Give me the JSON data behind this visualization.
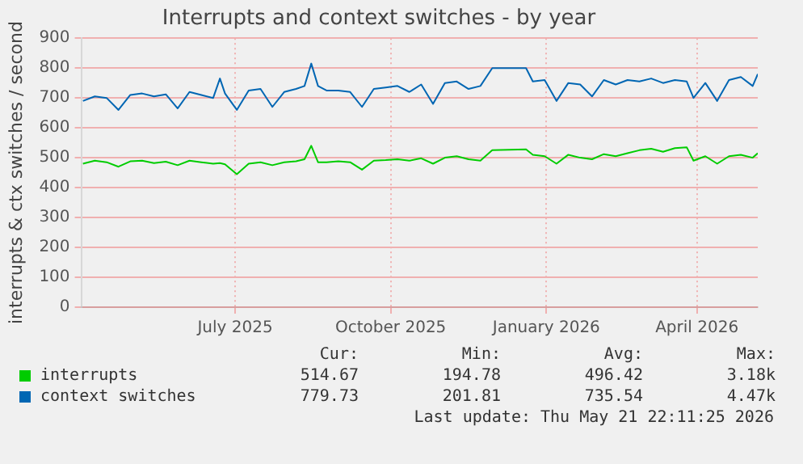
{
  "chart_data": {
    "type": "line",
    "title": "Interrupts and context switches - by year",
    "ylabel": "interrupts & ctx switches / second",
    "x": [
      "2025-04-17",
      "2025-04-24",
      "2025-05-01",
      "2025-05-08",
      "2025-05-15",
      "2025-05-22",
      "2025-05-29",
      "2025-06-05",
      "2025-06-12",
      "2025-06-19",
      "2025-06-26",
      "2025-07-03",
      "2025-07-07",
      "2025-07-10",
      "2025-07-17",
      "2025-07-24",
      "2025-07-31",
      "2025-08-07",
      "2025-08-14",
      "2025-08-21",
      "2025-08-26",
      "2025-08-30",
      "2025-09-03",
      "2025-09-08",
      "2025-09-15",
      "2025-09-22",
      "2025-09-29",
      "2025-10-06",
      "2025-10-13",
      "2025-10-20",
      "2025-10-27",
      "2025-11-03",
      "2025-11-10",
      "2025-11-17",
      "2025-11-24",
      "2025-12-01",
      "2025-12-08",
      "2025-12-15",
      "2026-01-04",
      "2026-01-08",
      "2026-01-15",
      "2026-01-22",
      "2026-01-29",
      "2026-02-05",
      "2026-02-12",
      "2026-02-19",
      "2026-02-26",
      "2026-03-05",
      "2026-03-12",
      "2026-03-19",
      "2026-03-26",
      "2026-04-02",
      "2026-04-09",
      "2026-04-13",
      "2026-04-20",
      "2026-04-27",
      "2026-05-04",
      "2026-05-11",
      "2026-05-18",
      "2026-05-21"
    ],
    "series": [
      {
        "name": "interrupts",
        "color": "#00cc00",
        "values": [
          480,
          490,
          485,
          470,
          488,
          490,
          482,
          487,
          475,
          490,
          485,
          480,
          482,
          478,
          445,
          480,
          485,
          475,
          485,
          488,
          495,
          540,
          485,
          485,
          488,
          485,
          460,
          490,
          492,
          495,
          490,
          498,
          480,
          500,
          505,
          495,
          490,
          525,
          528,
          510,
          505,
          480,
          510,
          500,
          495,
          512,
          505,
          515,
          525,
          530,
          520,
          532,
          535,
          490,
          505,
          480,
          505,
          510,
          500,
          515
        ]
      },
      {
        "name": "context switches",
        "color": "#0066b3",
        "values": [
          690,
          705,
          700,
          660,
          710,
          715,
          705,
          712,
          665,
          720,
          710,
          700,
          765,
          715,
          660,
          725,
          730,
          670,
          720,
          730,
          740,
          815,
          740,
          725,
          725,
          720,
          670,
          730,
          735,
          740,
          720,
          745,
          680,
          750,
          755,
          730,
          740,
          800,
          800,
          755,
          760,
          690,
          750,
          745,
          705,
          760,
          745,
          760,
          755,
          765,
          750,
          760,
          755,
          700,
          750,
          690,
          760,
          770,
          740,
          780
        ]
      }
    ],
    "xlim": [
      "2025-04-16",
      "2026-05-21"
    ],
    "xticks": [
      {
        "value": "2025-07-16",
        "label": "July 2025"
      },
      {
        "value": "2025-10-16",
        "label": "October 2025"
      },
      {
        "value": "2026-01-16",
        "label": "January 2026"
      },
      {
        "value": "2026-04-15",
        "label": "April 2026"
      }
    ],
    "ylim": [
      0,
      900
    ],
    "yticks": [
      0,
      100,
      200,
      300,
      400,
      500,
      600,
      700,
      800,
      900
    ],
    "grid": true,
    "legend": "bottom",
    "marker": "none",
    "line_style": "solid",
    "annotations": [
      "Cur:",
      "Min:",
      "Avg:",
      "Max:",
      "514.67",
      "194.78",
      "496.42",
      "3.18k",
      "779.73",
      "201.81",
      "735.54",
      "4.47k",
      "Last update: Thu May 21 22:11:25 2026"
    ]
  }
}
